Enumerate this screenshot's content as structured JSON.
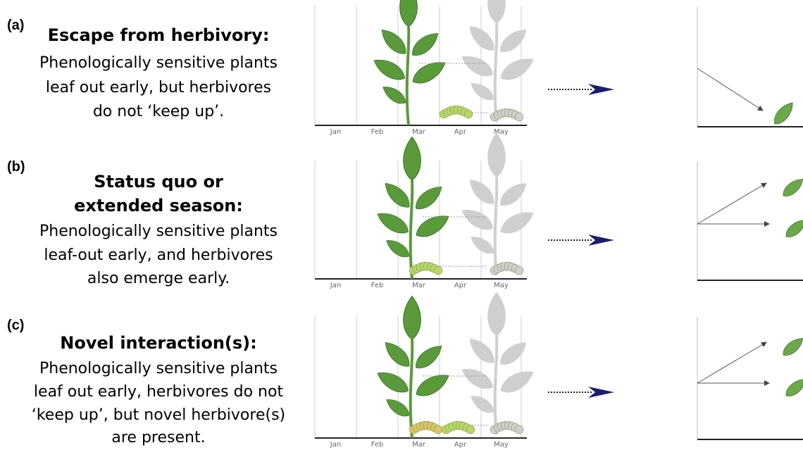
{
  "panels": [
    {
      "label": "(a)",
      "title": [
        "Escape from herbivory:"
      ],
      "description": [
        "Phenologically sensitive plants",
        "leaf out early, but herbivores",
        "do not ‘keep up’."
      ],
      "months": [
        "Jan",
        "Feb",
        "Mar",
        "Apr",
        "May"
      ]
    },
    {
      "label": "(b)",
      "title": [
        "Status quo or",
        "extended season:"
      ],
      "description": [
        "Phenologically sensitive plants",
        "leaf-out early, and herbivores",
        "also emerge early."
      ],
      "months": [
        "Jan",
        "Feb",
        "Mar",
        "Apr",
        "May"
      ]
    },
    {
      "label": "(c)",
      "title": [
        "Novel interaction(s):"
      ],
      "description": [
        "Phenologically sensitive plants",
        "leaf out early, herbivores do not",
        "‘keep up’, but novel herbivore(s)",
        "are present."
      ],
      "months": [
        "Jan",
        "Feb",
        "Mar",
        "Apr",
        "May"
      ]
    }
  ]
}
